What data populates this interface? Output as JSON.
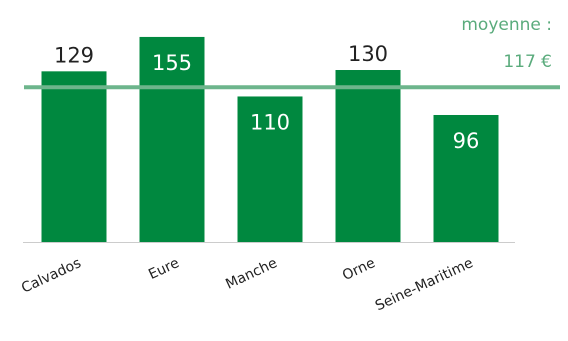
{
  "chart_data": {
    "type": "bar",
    "categories": [
      "Calvados",
      "Eure",
      "Manche",
      "Orne",
      "Seine-Maritime"
    ],
    "values": [
      129,
      155,
      110,
      130,
      96
    ],
    "ylim": [
      0,
      160
    ],
    "grid": false,
    "reference_line": {
      "value": 117,
      "label_line1": "moyenne :",
      "label_line2": "117 €"
    }
  },
  "colors": {
    "bar": "#00883f",
    "average_line": "#6db58c",
    "average_text": "#5aab7c",
    "label_outside": "#222222",
    "label_inside": "#ffffff",
    "axis": "#cccccc"
  }
}
